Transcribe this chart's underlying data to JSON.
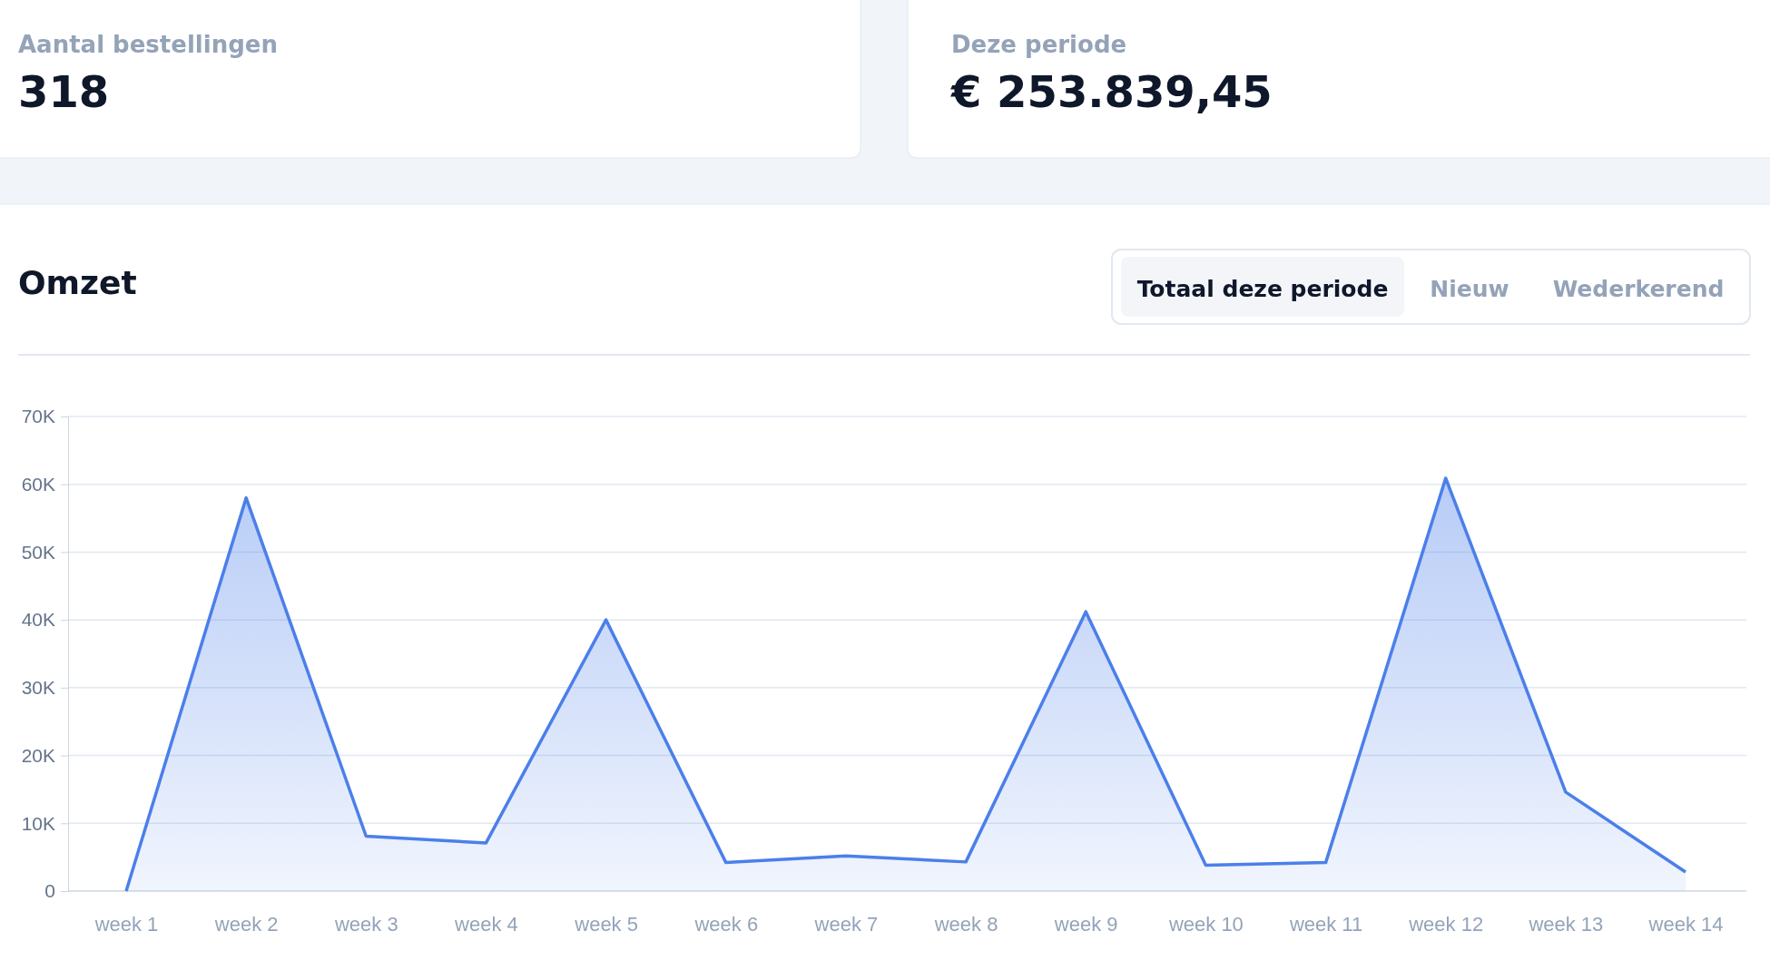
{
  "chart_data": {
    "type": "area",
    "title": "Omzet",
    "categories": [
      "week 1",
      "week 2",
      "week 3",
      "week 4",
      "week 5",
      "week 6",
      "week 7",
      "week 8",
      "week 9",
      "week 10",
      "week 11",
      "week 12",
      "week 13",
      "week 14"
    ],
    "series": [
      {
        "color": "#4b7fea",
        "values": [
          0,
          58000,
          8100,
          7100,
          40000,
          4200,
          5200,
          4300,
          41200,
          3800,
          4200,
          60900,
          14600,
          2800
        ]
      }
    ],
    "ylim": [
      0,
      70000
    ],
    "yticks": [
      0,
      {
        "value": 10000,
        "label": "10K"
      },
      {
        "value": 20000,
        "label": "20K"
      },
      {
        "value": 30000,
        "label": "30K"
      },
      {
        "value": 40000,
        "label": "40K"
      },
      {
        "value": 50000,
        "label": "50K"
      },
      {
        "value": 60000,
        "label": "60K"
      },
      {
        "value": 70000,
        "label": "70K"
      }
    ],
    "grid": "y",
    "annotations": [
      "Aantal bestellingen",
      "318",
      "Deze periode",
      "€ 253.839,45",
      "Totaal deze periode",
      "Nieuw",
      "Wederkerend"
    ]
  }
}
